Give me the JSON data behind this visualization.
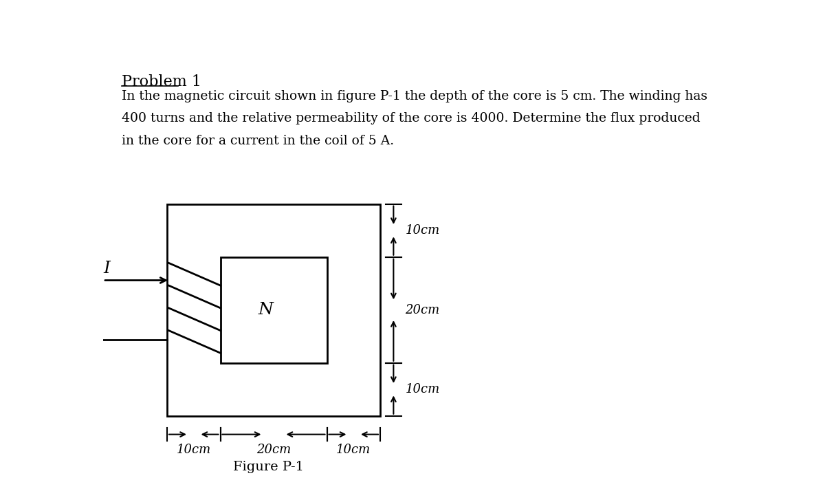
{
  "title": "Problem 1",
  "problem_text_line1": "In the magnetic circuit shown in figure P-1 the depth of the core is 5 cm. The winding has",
  "problem_text_line2": "400 turns and the relative permeability of the core is 4000. Determine the flux produced",
  "problem_text_line3": "in the core for a current in the coil of 5 A.",
  "figure_label": "Figure P-1",
  "bg_color": "#ffffff",
  "line_color": "#000000",
  "font_color": "#000000",
  "dim_labels": {
    "top_10cm": "10cm",
    "middle_20cm": "20cm",
    "bottom_10cm": "10cm",
    "left_10cm": "10cm",
    "center_20cm": "20cm",
    "right_10cm": "10cm"
  },
  "N_label": "N",
  "I_label": "I"
}
